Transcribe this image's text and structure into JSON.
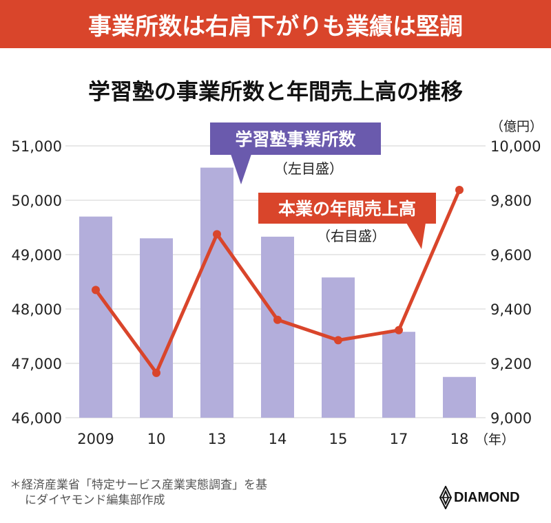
{
  "banner": "事業所数は右肩下がりも業績は堅調",
  "footnote": [
    "＊経済産業省「特定サービス産業実態調査」を基",
    "にダイヤモンド編集部作成"
  ],
  "logo": "DIAMOND",
  "chart_data": {
    "type": "bar+line",
    "title": "学習塾の事業所数と年間売上高の推移",
    "categories": [
      "2009",
      "10",
      "13",
      "14",
      "15",
      "17",
      "18"
    ],
    "x_unit": "（年）",
    "y_left": {
      "ylim": [
        46000,
        51000
      ],
      "ticks": [
        "46,000",
        "47,000",
        "48,000",
        "49,000",
        "50,000",
        "51,000"
      ],
      "tick_values": [
        46000,
        47000,
        48000,
        49000,
        50000,
        51000
      ]
    },
    "y_right": {
      "unit": "（億円）",
      "ylim": [
        9000,
        10000
      ],
      "ticks": [
        "9,000",
        "9,200",
        "9,400",
        "9,600",
        "9,800",
        "10,000"
      ],
      "tick_values": [
        9000,
        9200,
        9400,
        9600,
        9800,
        10000
      ]
    },
    "grid": true,
    "series": [
      {
        "name": "学習塾事業所数",
        "axis_note": "（左目盛）",
        "type": "bar",
        "axis": "left",
        "color": "#b3aedb",
        "label_color": "#6a5aad",
        "values": [
          49700,
          49300,
          50600,
          49330,
          48580,
          47580,
          46750
        ]
      },
      {
        "name": "本業の年間売上高",
        "axis_note": "（右目盛）",
        "type": "line",
        "axis": "right",
        "color": "#d9452b",
        "values": [
          9470,
          9165,
          9675,
          9360,
          9285,
          9322,
          9838
        ]
      }
    ]
  },
  "colors": {
    "banner": "#d9452b",
    "grid": "#d0d0d0"
  }
}
